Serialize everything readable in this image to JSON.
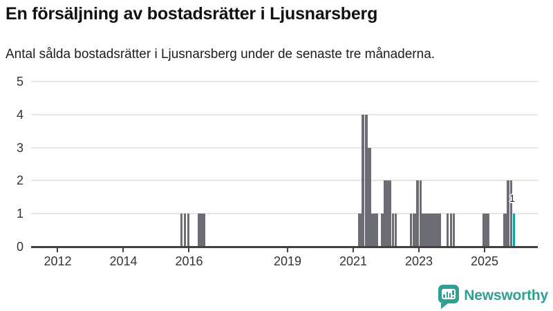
{
  "header": {
    "title": "En försäljning av bostadsrätter i Ljusnarsberg",
    "subtitle": "Antal sålda bostadsrätter i Ljusnarsberg under de senaste tre månaderna."
  },
  "chart_data": {
    "type": "bar",
    "title": "En försäljning av bostadsrätter i Ljusnarsberg",
    "subtitle": "Antal sålda bostadsrätter i Ljusnarsberg under de senaste tre månaderna.",
    "xlabel": "",
    "ylabel": "",
    "ylim": [
      0,
      5
    ],
    "yticks": [
      "0",
      "1",
      "2",
      "3",
      "4",
      "5"
    ],
    "xlim": [
      2011.19,
      2026.62
    ],
    "xticks": [
      {
        "value": 2012,
        "label": "2012"
      },
      {
        "value": 2014,
        "label": "2014"
      },
      {
        "value": 2016,
        "label": "2016"
      },
      {
        "value": 2019,
        "label": "2019"
      },
      {
        "value": 2021,
        "label": "2021"
      },
      {
        "value": 2023,
        "label": "2023"
      },
      {
        "value": 2025,
        "label": "2025"
      }
    ],
    "grid": true,
    "legend": "none",
    "colors": {
      "bar": "#6c6c75",
      "highlight": "#0aa5a3",
      "gridline": "#e6e6e6",
      "axis": "#414141",
      "tick_text": "#333333"
    },
    "bars": [
      {
        "x0": 2015.74,
        "x1": 2015.8,
        "value": 1
      },
      {
        "x0": 2015.84,
        "x1": 2015.91,
        "value": 1
      },
      {
        "x0": 2015.95,
        "x1": 2016.01,
        "value": 1
      },
      {
        "x0": 2016.27,
        "x1": 2016.5,
        "value": 1
      },
      {
        "x0": 2021.15,
        "x1": 2021.26,
        "value": 1
      },
      {
        "x0": 2021.26,
        "x1": 2021.34,
        "value": 4
      },
      {
        "x0": 2021.36,
        "x1": 2021.45,
        "value": 4
      },
      {
        "x0": 2021.45,
        "x1": 2021.55,
        "value": 3
      },
      {
        "x0": 2021.55,
        "x1": 2021.76,
        "value": 1
      },
      {
        "x0": 2021.85,
        "x1": 2021.93,
        "value": 1
      },
      {
        "x0": 2021.93,
        "x1": 2022.16,
        "value": 2
      },
      {
        "x0": 2022.18,
        "x1": 2022.25,
        "value": 1
      },
      {
        "x0": 2022.26,
        "x1": 2022.32,
        "value": 1
      },
      {
        "x0": 2022.72,
        "x1": 2022.78,
        "value": 1
      },
      {
        "x0": 2022.82,
        "x1": 2022.92,
        "value": 1
      },
      {
        "x0": 2022.92,
        "x1": 2022.99,
        "value": 2
      },
      {
        "x0": 2023.02,
        "x1": 2023.09,
        "value": 2
      },
      {
        "x0": 2023.09,
        "x1": 2023.68,
        "value": 1
      },
      {
        "x0": 2023.85,
        "x1": 2023.91,
        "value": 1
      },
      {
        "x0": 2023.94,
        "x1": 2024.0,
        "value": 1
      },
      {
        "x0": 2024.03,
        "x1": 2024.09,
        "value": 1
      },
      {
        "x0": 2024.93,
        "x1": 2024.99,
        "value": 1
      },
      {
        "x0": 2025.0,
        "x1": 2025.15,
        "value": 1
      },
      {
        "x0": 2025.57,
        "x1": 2025.67,
        "value": 1
      },
      {
        "x0": 2025.68,
        "x1": 2025.75,
        "value": 2
      },
      {
        "x0": 2025.77,
        "x1": 2025.84,
        "value": 2
      },
      {
        "x0": 2025.86,
        "x1": 2025.93,
        "value": 1,
        "highlight": true,
        "label": "1"
      }
    ]
  },
  "branding": {
    "wordmark": "Newsworthy",
    "color": "#2f9e93",
    "icon": "newsworthy-bar-chart-bubble-icon"
  }
}
